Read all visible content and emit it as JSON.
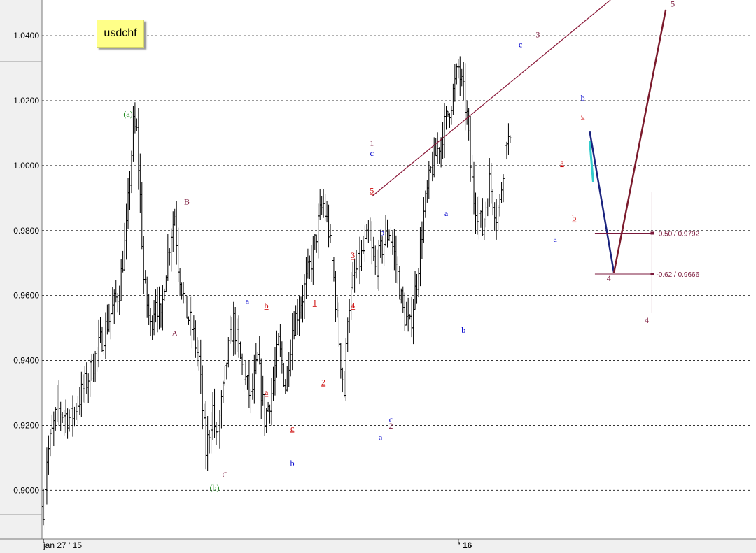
{
  "chart_data": {
    "type": "ohlc",
    "title": "usdchf",
    "y_ticks": [
      0.9,
      0.92,
      0.94,
      0.96,
      0.98,
      1.0,
      1.02,
      1.04
    ],
    "y_tick_labels": [
      "0.9000",
      "0.9200",
      "0.9400",
      "0.9600",
      "0.9800",
      "1.0000",
      "1.0200",
      "1.0400"
    ],
    "ylim": [
      0.885,
      1.051
    ],
    "grid": true,
    "x_labels": [
      {
        "text": "jan 27 ' 15",
        "bar": 0
      },
      {
        "text": "' 16",
        "bar": 240
      }
    ],
    "price_path": [
      [
        0,
        0.895
      ],
      [
        2,
        0.91
      ],
      [
        8,
        0.925
      ],
      [
        16,
        0.922
      ],
      [
        26,
        0.935
      ],
      [
        36,
        0.95
      ],
      [
        44,
        0.962
      ],
      [
        48,
        0.98
      ],
      [
        52,
        1.012
      ],
      [
        54,
        1.01
      ],
      [
        56,
        0.99
      ],
      [
        58,
        0.965
      ],
      [
        62,
        0.95
      ],
      [
        65,
        0.96
      ],
      [
        68,
        0.951
      ],
      [
        70,
        0.965
      ],
      [
        74,
        0.98
      ],
      [
        76,
        0.985
      ],
      [
        78,
        0.97
      ],
      [
        82,
        0.956
      ],
      [
        86,
        0.95
      ],
      [
        90,
        0.94
      ],
      [
        92,
        0.925
      ],
      [
        94,
        0.912
      ],
      [
        98,
        0.925
      ],
      [
        100,
        0.915
      ],
      [
        104,
        0.93
      ],
      [
        106,
        0.94
      ],
      [
        110,
        0.952
      ],
      [
        114,
        0.94
      ],
      [
        120,
        0.928
      ],
      [
        124,
        0.94
      ],
      [
        128,
        0.922
      ],
      [
        132,
        0.93
      ],
      [
        136,
        0.945
      ],
      [
        140,
        0.932
      ],
      [
        144,
        0.95
      ],
      [
        150,
        0.96
      ],
      [
        156,
        0.973
      ],
      [
        160,
        0.985
      ],
      [
        162,
        0.988
      ],
      [
        165,
        0.98
      ],
      [
        168,
        0.965
      ],
      [
        172,
        0.94
      ],
      [
        174,
        0.93
      ],
      [
        176,
        0.955
      ],
      [
        180,
        0.966
      ],
      [
        184,
        0.972
      ],
      [
        188,
        0.978
      ],
      [
        192,
        0.968
      ],
      [
        196,
        0.975
      ],
      [
        200,
        0.98
      ],
      [
        204,
        0.97
      ],
      [
        208,
        0.955
      ],
      [
        212,
        0.95
      ],
      [
        216,
        0.965
      ],
      [
        220,
        0.985
      ],
      [
        224,
        0.998
      ],
      [
        228,
        1.005
      ],
      [
        232,
        1.012
      ],
      [
        236,
        1.02
      ],
      [
        240,
        1.03
      ],
      [
        243,
        1.022
      ],
      [
        245,
        1.015
      ],
      [
        247,
        1.0
      ],
      [
        249,
        0.99
      ],
      [
        252,
        0.985
      ],
      [
        254,
        0.98
      ],
      [
        256,
        0.988
      ],
      [
        258,
        0.995
      ],
      [
        260,
        0.99
      ],
      [
        262,
        0.985
      ],
      [
        264,
        0.988
      ],
      [
        266,
        1.0
      ],
      [
        268,
        1.01
      ],
      [
        270,
        1.005
      ]
    ],
    "wave_labels": [
      {
        "text": "(a)",
        "color": "#1f8a1f",
        "bar": 49,
        "y": 1.015
      },
      {
        "text": "(b)",
        "color": "#1f8a1f",
        "bar": 99,
        "y": 0.9
      },
      {
        "text": "A",
        "color": "#7b1a3c",
        "bar": 76,
        "y": 0.9475
      },
      {
        "text": "B",
        "color": "#7b1a3c",
        "bar": 83,
        "y": 0.988
      },
      {
        "text": "C",
        "color": "#7b1a3c",
        "bar": 105,
        "y": 0.904
      },
      {
        "text": "a",
        "color": "#0000cc",
        "bar": 118,
        "y": 0.9575
      },
      {
        "text": "b",
        "color": "#0000cc",
        "bar": 144,
        "y": 0.9075
      },
      {
        "text": "a",
        "color": "#0000cc",
        "bar": 195,
        "y": 0.9155
      },
      {
        "text": "b",
        "color": "#0000cc",
        "bar": 196,
        "y": 0.9785
      },
      {
        "text": "c",
        "color": "#0000cc",
        "bar": 201,
        "y": 0.921
      },
      {
        "text": "a",
        "color": "#0000cc",
        "bar": 233,
        "y": 0.9845
      },
      {
        "text": "b",
        "color": "#0000cc",
        "bar": 243,
        "y": 0.9485
      },
      {
        "text": "c",
        "color": "#0000cc",
        "bar": 276,
        "y": 1.0365
      },
      {
        "text": "a",
        "color": "#0000cc",
        "bar": 296,
        "y": 0.9765
      },
      {
        "text": "b",
        "color": "#0000cc",
        "bar": 312,
        "y": 1.02
      },
      {
        "text": "c",
        "color": "#0000cc",
        "bar": 190,
        "y": 1.003
      },
      {
        "text": "1",
        "color": "#7b1a3c",
        "bar": 190,
        "y": 1.006
      },
      {
        "text": "2",
        "color": "#7b1a3c",
        "bar": 201,
        "y": 0.919
      },
      {
        "text": "3",
        "color": "#7b1a3c",
        "bar": 286,
        "y": 1.0395
      },
      {
        "text": "4",
        "color": "#7b1a3c",
        "bar": 327,
        "y": 0.9645
      },
      {
        "text": "4",
        "color": "#7b1a3c",
        "bar": 349,
        "y": 0.9515
      },
      {
        "text": "5",
        "color": "#7b1a3c",
        "bar": 364,
        "y": 1.049
      }
    ],
    "sub_wave_labels": [
      {
        "text": "b",
        "bar": 129,
        "y": 0.956
      },
      {
        "text": "a",
        "bar": 129,
        "y": 0.9293
      },
      {
        "text": "c",
        "bar": 144,
        "y": 0.9183
      },
      {
        "text": "1",
        "bar": 157,
        "y": 0.957
      },
      {
        "text": "2",
        "bar": 162,
        "y": 0.9325
      },
      {
        "text": "3",
        "bar": 179,
        "y": 0.9715
      },
      {
        "text": "4",
        "bar": 179,
        "y": 0.956
      },
      {
        "text": "5",
        "bar": 190,
        "y": 0.9915
      },
      {
        "text": "a",
        "bar": 300,
        "y": 1.0
      },
      {
        "text": "b",
        "bar": 307,
        "y": 0.983
      },
      {
        "text": "c",
        "bar": 312,
        "y": 1.0145
      }
    ],
    "sub_wave_color": "#cc0000",
    "fib_levels": [
      {
        "label": "-0.50 / 0.9792",
        "value": 0.9792
      },
      {
        "label": "-0.62 / 0.9666",
        "value": 0.9666
      }
    ],
    "trendline": {
      "from": {
        "bar": 190,
        "y": 0.9905
      },
      "to": {
        "bar": 328,
        "y": 1.051
      }
    },
    "projection": {
      "blue_leg": [
        {
          "bar": 316,
          "y": 1.0105
        },
        {
          "bar": 330,
          "y": 0.967
        }
      ],
      "red_leg": [
        {
          "bar": 330,
          "y": 0.967
        },
        {
          "bar": 360,
          "y": 1.048
        }
      ],
      "cyan_leg": [
        {
          "bar": 316,
          "y": 1.0075
        },
        {
          "bar": 318,
          "y": 0.995
        }
      ]
    },
    "fib_range": {
      "bar": 352,
      "from": 0.992,
      "to": 0.956
    }
  }
}
